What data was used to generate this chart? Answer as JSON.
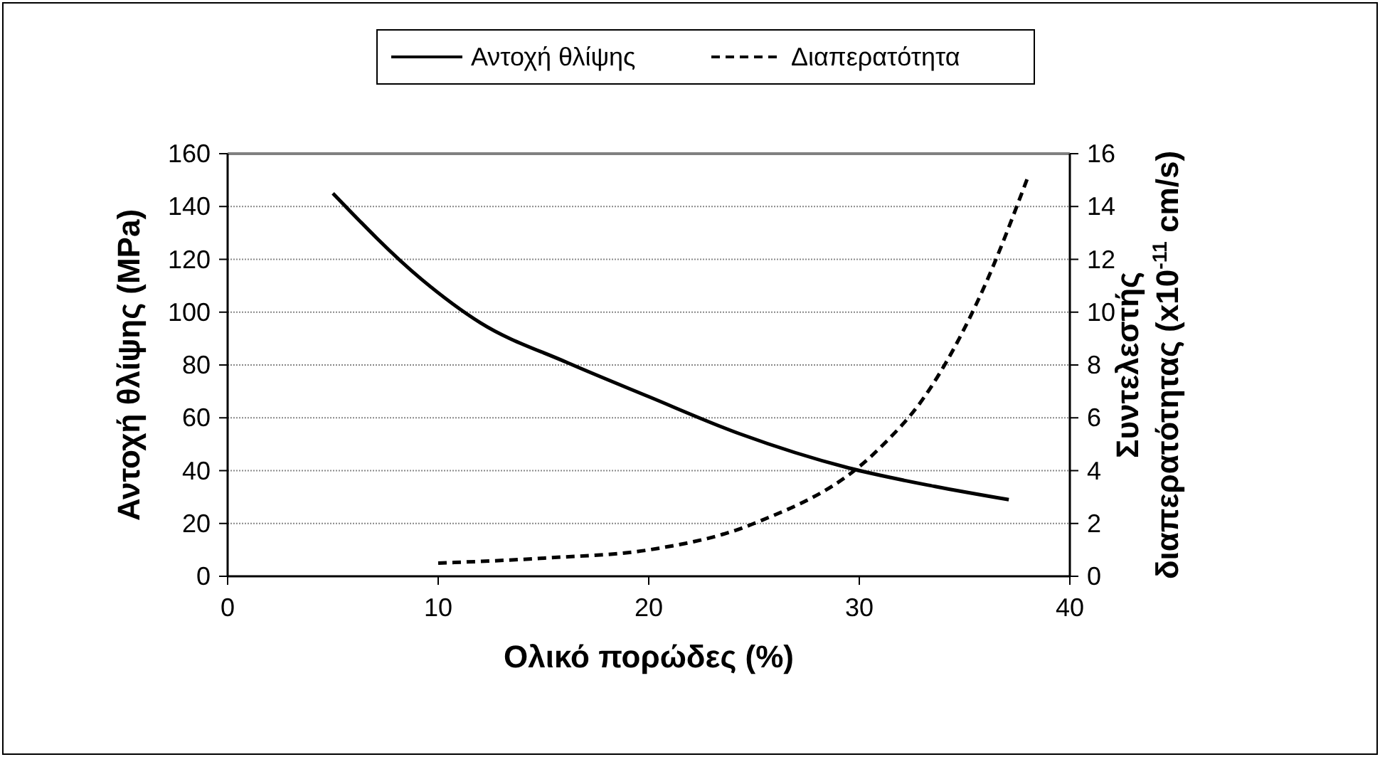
{
  "chart_data": {
    "type": "line",
    "xlabel": "Ολικό πορώδες (%)",
    "ylabel": "Αντοχή θλίψης (MPa)",
    "y2label": "Συντελεστής διαπερατότητας (x10$^{-11}$ cm/s)",
    "series": [
      {
        "name": "Αντοχή θλίψης",
        "color": "#000000",
        "line_style": "solid",
        "x": [
          5,
          9.2,
          12,
          16.1,
          20,
          24.3,
          29.5,
          33.6,
          37.1
        ],
        "values": [
          145,
          112.5,
          96,
          81,
          68,
          54,
          41,
          34,
          29
        ]
      },
      {
        "name": "Διαπερατότητα",
        "color": "#000000",
        "line_style": "dashed",
        "axis": "y2",
        "x": [
          10,
          15.3,
          20,
          25,
          30.9,
          33.1,
          35.9,
          38
        ],
        "values": [
          0.5,
          0.7,
          1,
          2,
          4.8,
          6.8,
          10.9,
          15.1
        ]
      }
    ],
    "xlim": [
      0,
      40
    ],
    "xticks": [
      0,
      10,
      20,
      30,
      40
    ],
    "ylim": [
      0,
      160
    ],
    "yticks": [
      0,
      20,
      40,
      60,
      80,
      100,
      120,
      140,
      160
    ],
    "y2lim": [
      0,
      16
    ],
    "y2ticks": [
      0,
      2,
      4,
      6,
      8,
      10,
      12,
      14,
      16
    ],
    "grid": "y",
    "legend": "top"
  }
}
